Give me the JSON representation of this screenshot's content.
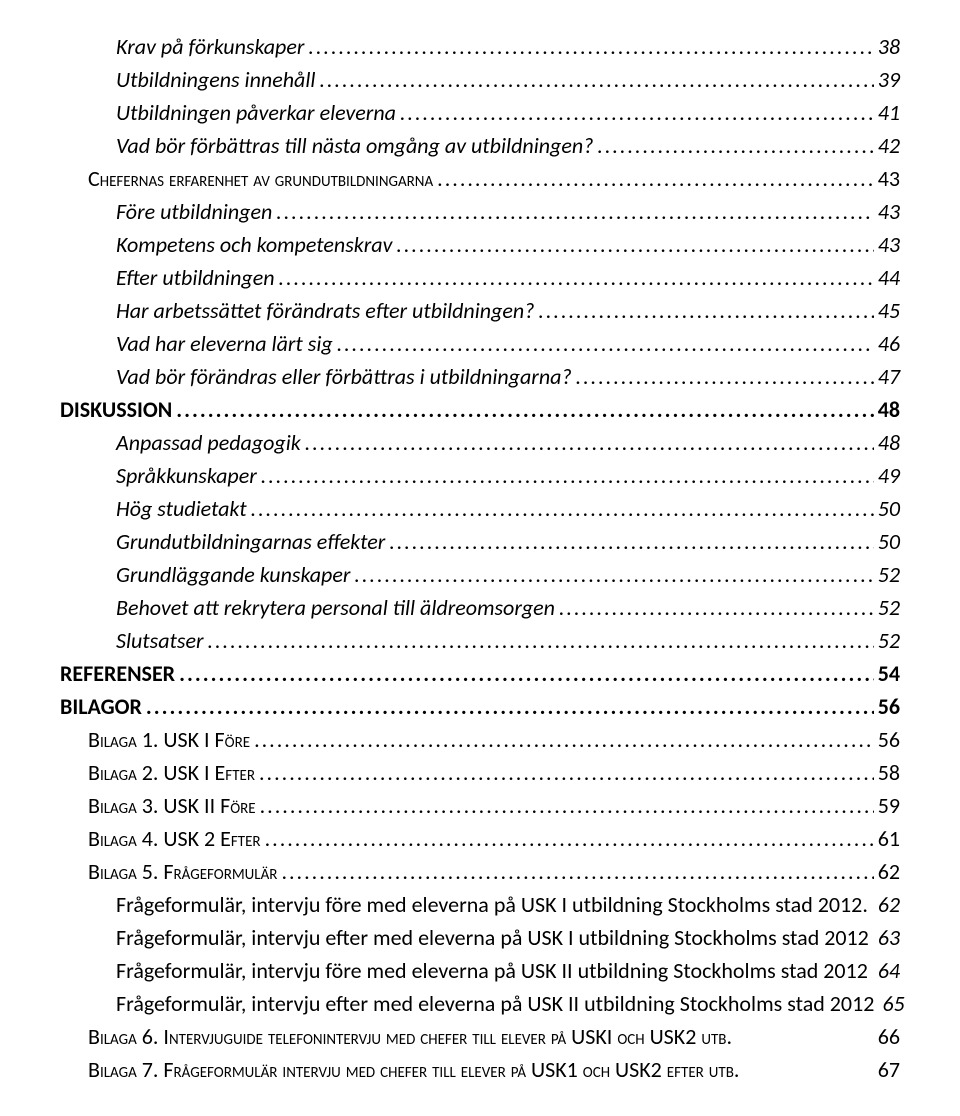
{
  "toc": [
    {
      "level": "lvl-2",
      "label": "Krav på förkunskaper",
      "page": "38"
    },
    {
      "level": "lvl-2",
      "label": "Utbildningens innehåll",
      "page": "39"
    },
    {
      "level": "lvl-2",
      "label": "Utbildningen påverkar eleverna",
      "page": "41"
    },
    {
      "level": "lvl-2",
      "label": "Vad bör förbättras till nästa omgång av utbildningen?",
      "page": "42"
    },
    {
      "level": "lvl-1",
      "label": "Chefernas erfarenhet av grundutbildningarna",
      "page": "43"
    },
    {
      "level": "lvl-2",
      "label": "Före utbildningen",
      "page": "43"
    },
    {
      "level": "lvl-2",
      "label": "Kompetens och kompetenskrav",
      "page": "43"
    },
    {
      "level": "lvl-2",
      "label": "Efter utbildningen",
      "page": "44"
    },
    {
      "level": "lvl-2",
      "label": "Har arbetssättet förändrats efter utbildningen?",
      "page": "45"
    },
    {
      "level": "lvl-2",
      "label": "Vad har eleverna lärt sig",
      "page": "46"
    },
    {
      "level": "lvl-2",
      "label": "Vad bör förändras eller förbättras i utbildningarna?",
      "page": "47"
    },
    {
      "level": "lvl-0",
      "label": "DISKUSSION",
      "page": "48"
    },
    {
      "level": "lvl-2",
      "label": "Anpassad pedagogik",
      "page": "48"
    },
    {
      "level": "lvl-2",
      "label": "Språkkunskaper",
      "page": "49"
    },
    {
      "level": "lvl-2",
      "label": "Hög studietakt",
      "page": "50"
    },
    {
      "level": "lvl-2",
      "label": "Grundutbildningarnas effekter",
      "page": "50"
    },
    {
      "level": "lvl-2",
      "label": "Grundläggande kunskaper",
      "page": "52"
    },
    {
      "level": "lvl-2",
      "label": "Behovet att rekrytera personal till äldreomsorgen",
      "page": "52"
    },
    {
      "level": "lvl-2",
      "label": "Slutsatser",
      "page": "52"
    },
    {
      "level": "lvl-0",
      "label": "REFERENSER",
      "page": "54"
    },
    {
      "level": "lvl-0",
      "label": "BILAGOR",
      "page": "56"
    },
    {
      "level": "lvl-1",
      "label": "Bilaga 1. USK I Före",
      "page": "56"
    },
    {
      "level": "lvl-1",
      "label": "Bilaga 2. USK I Efter",
      "page": "58"
    },
    {
      "level": "lvl-1",
      "label": "Bilaga 3. USK II Före",
      "page": "59"
    },
    {
      "level": "lvl-1",
      "label": "Bilaga 4. USK 2 Efter",
      "page": "61"
    },
    {
      "level": "lvl-1",
      "label": "Bilaga 5. Frågeformulär",
      "page": "62"
    },
    {
      "level": "lvl-2n",
      "label": "Frågeformulär, intervju före med eleverna på USK I utbildning Stockholms stad 2012.",
      "page": "62",
      "nodots": true
    },
    {
      "level": "lvl-2n",
      "label": "Frågeformulär, intervju efter med eleverna på USK I utbildning Stockholms stad 2012",
      "page": "63",
      "nodots": true
    },
    {
      "level": "lvl-2n",
      "label": "Frågeformulär, intervju före med eleverna på USK II utbildning Stockholms stad 2012",
      "page": "64",
      "nodots": true
    },
    {
      "level": "lvl-2n",
      "label": "Frågeformulär, intervju efter med eleverna på USK II utbildning Stockholms stad 2012",
      "page": "65",
      "nodots": true
    },
    {
      "level": "lvl-1",
      "label": "Bilaga 6. Intervjuguide telefonintervju med chefer till elever på USKI och USK2 utb.",
      "page": "66",
      "nodots": true
    },
    {
      "level": "lvl-1",
      "label": "Bilaga 7. Frågeformulär intervju med chefer till elever på USK1 och USK2 efter utb.",
      "page": "67",
      "nodots": true
    }
  ]
}
